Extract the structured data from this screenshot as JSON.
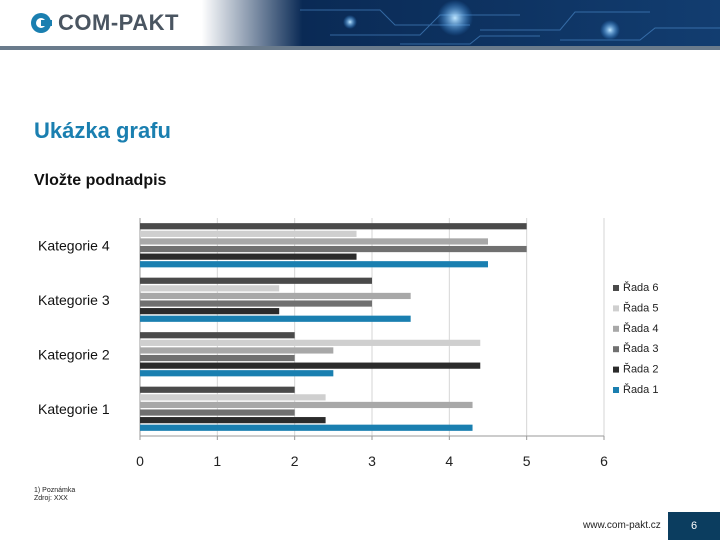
{
  "header": {
    "logo_text": "COM-PAKT"
  },
  "slide": {
    "title": "Ukázka grafu",
    "subtitle": "Vložte podnadpis"
  },
  "footnotes": {
    "line1": "1)     Poznámka",
    "line2": "Zdroj: XXX"
  },
  "footer": {
    "url": "www.com-pakt.cz",
    "page_number": "6"
  },
  "colors": {
    "accent": "#1a7fb0",
    "page_box": "#0b3d5f"
  },
  "chart_data": {
    "type": "bar",
    "orientation": "horizontal",
    "categories": [
      "Kategorie 1",
      "Kategorie 2",
      "Kategorie 3",
      "Kategorie 4"
    ],
    "series": [
      {
        "name": "Řada 1",
        "color": "#1a7fb0",
        "values": [
          4.3,
          2.5,
          3.5,
          4.5
        ]
      },
      {
        "name": "Řada 2",
        "color": "#2b2b2b",
        "values": [
          2.4,
          4.4,
          1.8,
          2.8
        ]
      },
      {
        "name": "Řada 3",
        "color": "#707070",
        "values": [
          2.0,
          2.0,
          3.0,
          5.0
        ]
      },
      {
        "name": "Řada 4",
        "color": "#a8a8a8",
        "values": [
          4.3,
          2.5,
          3.5,
          4.5
        ]
      },
      {
        "name": "Řada 5",
        "color": "#cfcfcf",
        "values": [
          2.4,
          4.4,
          1.8,
          2.8
        ]
      },
      {
        "name": "Řada 6",
        "color": "#4a4a4a",
        "values": [
          2.0,
          2.0,
          3.0,
          5.0
        ]
      }
    ],
    "x_ticks": [
      0,
      1,
      2,
      3,
      4,
      5,
      6
    ],
    "xlim": [
      0,
      6
    ],
    "grid": "vertical",
    "legend": "right"
  }
}
